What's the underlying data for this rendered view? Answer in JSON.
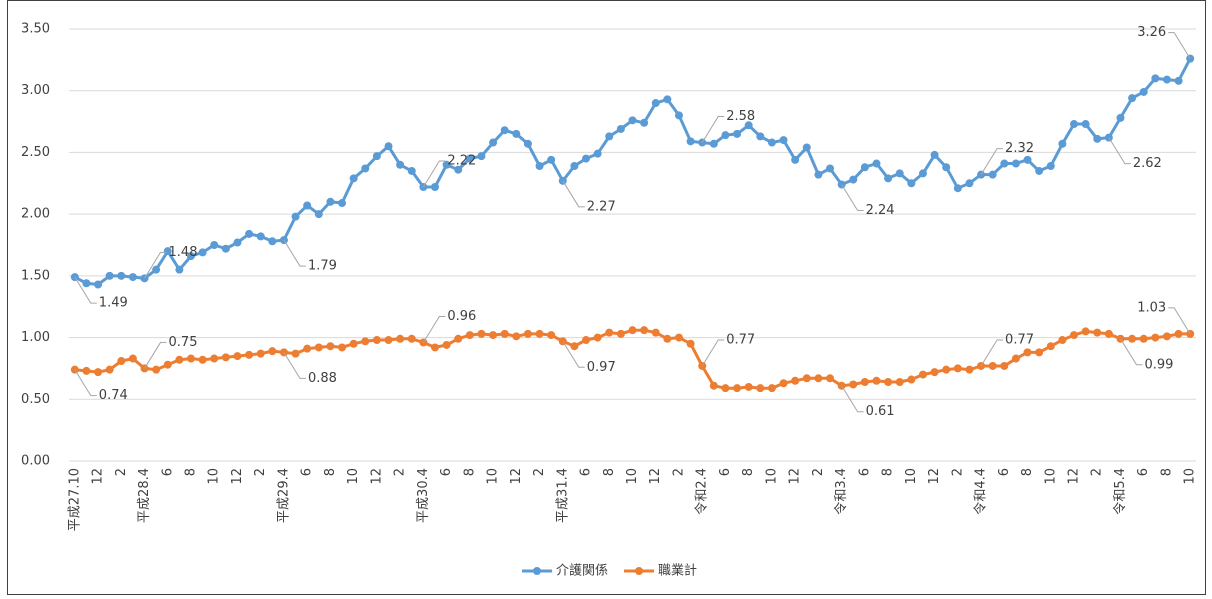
{
  "chart_data": {
    "type": "line",
    "categories": [
      "平成27.10",
      null,
      "12",
      null,
      "2",
      null,
      "平成28.4",
      null,
      "6",
      null,
      "8",
      null,
      "10",
      null,
      "12",
      null,
      "2",
      null,
      "平成29.4",
      null,
      "6",
      null,
      "8",
      null,
      "10",
      null,
      "12",
      null,
      "2",
      null,
      "平成30.4",
      null,
      "6",
      null,
      "8",
      null,
      "10",
      null,
      "12",
      null,
      "2",
      null,
      "平成31.4",
      null,
      "6",
      null,
      "8",
      null,
      "10",
      null,
      "12",
      null,
      "2",
      null,
      "令和2.4",
      null,
      "6",
      null,
      "8",
      null,
      "10",
      null,
      "12",
      null,
      "2",
      null,
      "令和3.4",
      null,
      "6",
      null,
      "8",
      null,
      "10",
      null,
      "12",
      null,
      "2",
      null,
      "令和4.4",
      null,
      "6",
      null,
      "8",
      null,
      "10",
      null,
      "12",
      null,
      "2",
      null,
      "令和5.4",
      null,
      "6",
      null,
      "8",
      null,
      "10"
    ],
    "series": [
      {
        "name": "介護関係",
        "color": "#5b9bd5",
        "values": [
          1.49,
          1.44,
          1.43,
          1.5,
          1.5,
          1.49,
          1.48,
          1.55,
          1.7,
          1.55,
          1.66,
          1.69,
          1.75,
          1.72,
          1.77,
          1.84,
          1.82,
          1.78,
          1.79,
          1.98,
          2.07,
          2.0,
          2.1,
          2.09,
          2.29,
          2.37,
          2.47,
          2.55,
          2.4,
          2.35,
          2.22,
          2.22,
          2.4,
          2.36,
          2.45,
          2.47,
          2.58,
          2.68,
          2.65,
          2.57,
          2.39,
          2.44,
          2.27,
          2.39,
          2.45,
          2.49,
          2.63,
          2.69,
          2.76,
          2.74,
          2.9,
          2.93,
          2.8,
          2.59,
          2.58,
          2.57,
          2.64,
          2.65,
          2.72,
          2.63,
          2.58,
          2.6,
          2.44,
          2.54,
          2.32,
          2.37,
          2.24,
          2.28,
          2.38,
          2.41,
          2.29,
          2.33,
          2.25,
          2.33,
          2.48,
          2.38,
          2.21,
          2.25,
          2.32,
          2.32,
          2.41,
          2.41,
          2.44,
          2.35,
          2.39,
          2.57,
          2.73,
          2.73,
          2.61,
          2.62,
          2.78,
          2.94,
          2.99,
          3.1,
          3.09,
          3.08,
          3.26
        ],
        "value_labels": [
          "1.49",
          null,
          null,
          null,
          null,
          null,
          "1.48",
          null,
          null,
          null,
          null,
          null,
          null,
          null,
          null,
          null,
          null,
          null,
          "1.79",
          null,
          null,
          null,
          null,
          null,
          null,
          null,
          null,
          null,
          null,
          null,
          "2.22",
          null,
          null,
          null,
          null,
          null,
          null,
          null,
          null,
          null,
          null,
          null,
          "2.27",
          null,
          null,
          null,
          null,
          null,
          null,
          null,
          null,
          null,
          null,
          null,
          "2.58",
          null,
          null,
          null,
          null,
          null,
          null,
          null,
          null,
          null,
          null,
          null,
          "2.24",
          null,
          null,
          null,
          null,
          null,
          null,
          null,
          null,
          null,
          null,
          null,
          "2.32",
          null,
          null,
          null,
          null,
          null,
          null,
          null,
          null,
          null,
          null,
          "2.62",
          null,
          null,
          null,
          null,
          null,
          null,
          "3.26"
        ]
      },
      {
        "name": "職業計",
        "color": "#ed7d31",
        "values": [
          0.74,
          0.73,
          0.72,
          0.74,
          0.81,
          0.83,
          0.75,
          0.74,
          0.78,
          0.82,
          0.83,
          0.82,
          0.83,
          0.84,
          0.85,
          0.86,
          0.87,
          0.89,
          0.88,
          0.87,
          0.91,
          0.92,
          0.93,
          0.92,
          0.95,
          0.97,
          0.98,
          0.98,
          0.99,
          0.99,
          0.96,
          0.92,
          0.94,
          0.99,
          1.02,
          1.03,
          1.02,
          1.03,
          1.01,
          1.03,
          1.03,
          1.02,
          0.97,
          0.93,
          0.98,
          1.0,
          1.04,
          1.03,
          1.06,
          1.06,
          1.04,
          0.99,
          1.0,
          0.95,
          0.77,
          0.61,
          0.59,
          0.59,
          0.6,
          0.59,
          0.59,
          0.63,
          0.65,
          0.67,
          0.67,
          0.67,
          0.61,
          0.62,
          0.64,
          0.65,
          0.64,
          0.64,
          0.66,
          0.7,
          0.72,
          0.74,
          0.75,
          0.74,
          0.77,
          0.77,
          0.77,
          0.83,
          0.88,
          0.88,
          0.93,
          0.98,
          1.02,
          1.05,
          1.04,
          1.03,
          0.99,
          0.99,
          0.99,
          1.0,
          1.01,
          1.03,
          1.03
        ],
        "value_labels": [
          "0.74",
          null,
          null,
          null,
          null,
          null,
          "0.75",
          null,
          null,
          null,
          null,
          null,
          null,
          null,
          null,
          null,
          null,
          null,
          "0.88",
          null,
          null,
          null,
          null,
          null,
          null,
          null,
          null,
          null,
          null,
          null,
          "0.96",
          null,
          null,
          null,
          null,
          null,
          null,
          null,
          null,
          null,
          null,
          null,
          "0.97",
          null,
          null,
          null,
          null,
          null,
          null,
          null,
          null,
          null,
          null,
          null,
          "0.77",
          null,
          null,
          null,
          null,
          null,
          null,
          null,
          null,
          null,
          null,
          null,
          "0.61",
          null,
          null,
          null,
          null,
          null,
          null,
          null,
          null,
          null,
          null,
          null,
          "0.77",
          null,
          null,
          null,
          null,
          null,
          null,
          null,
          null,
          null,
          null,
          null,
          "0.99",
          null,
          null,
          null,
          null,
          null,
          "1.03"
        ]
      }
    ],
    "ylim": [
      0,
      3.5
    ],
    "yticks": [
      {
        "value": 0,
        "label": "0.00"
      },
      {
        "value": 0.5,
        "label": "0.50"
      },
      {
        "value": 1,
        "label": "1.00"
      },
      {
        "value": 1.5,
        "label": "1.50"
      },
      {
        "value": 2,
        "label": "2.00"
      },
      {
        "value": 2.5,
        "label": "2.50"
      },
      {
        "value": 3,
        "label": "3.00"
      },
      {
        "value": 3.5,
        "label": "3.50"
      }
    ],
    "grid": true,
    "legend": "bottom"
  }
}
